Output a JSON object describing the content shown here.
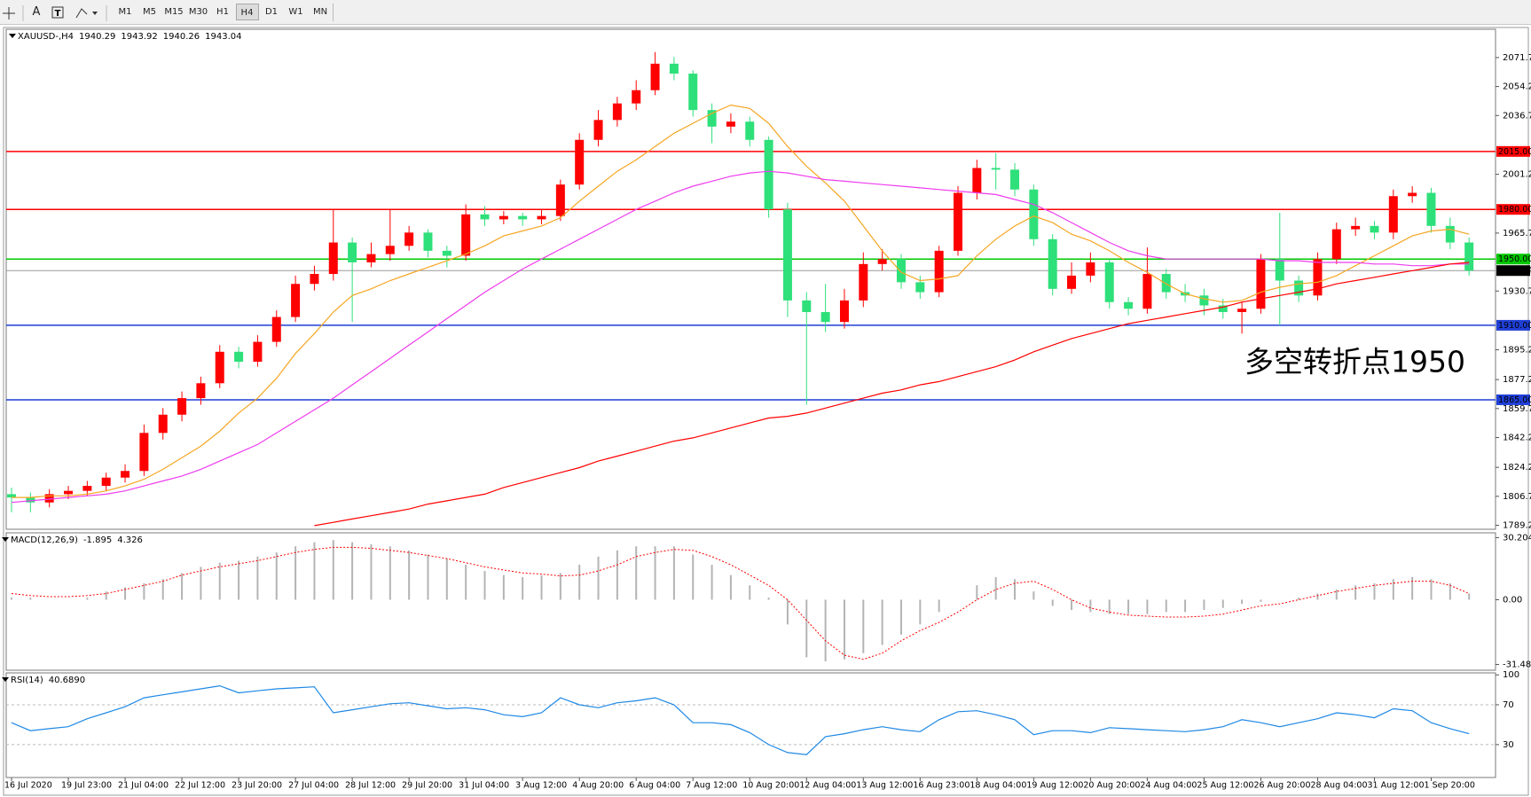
{
  "toolbar": {
    "text_tool": "A",
    "timeframes": [
      "M1",
      "M5",
      "M15",
      "M30",
      "H1",
      "H4",
      "D1",
      "W1",
      "MN"
    ]
  },
  "chart_data": [
    {
      "type": "candlestick",
      "title": "XAUUSD-,H4",
      "header_values": [
        1940.29,
        1943.92,
        1940.26,
        1943.04
      ],
      "up_color": "#ff0000",
      "down_color": "#2ee07a",
      "categories": [
        "16 Jul 2020",
        null,
        null,
        "19 Jul 23:00",
        null,
        null,
        "21 Jul 04:00",
        null,
        null,
        "22 Jul 12:00",
        null,
        null,
        "23 Jul 20:00",
        null,
        null,
        "27 Jul 04:00",
        null,
        null,
        "28 Jul 12:00",
        null,
        null,
        "29 Jul 20:00",
        null,
        null,
        "31 Jul 04:00",
        null,
        null,
        "3 Aug 12:00",
        null,
        null,
        "4 Aug 20:00",
        null,
        null,
        "6 Aug 04:00",
        null,
        null,
        "7 Aug 12:00",
        null,
        null,
        "10 Aug 20:00",
        null,
        null,
        "12 Aug 04:00",
        null,
        null,
        "13 Aug 12:00",
        null,
        null,
        "16 Aug 23:00",
        null,
        null,
        "18 Aug 04:00",
        null,
        null,
        "19 Aug 12:00",
        null,
        null,
        "20 Aug 20:00",
        null,
        null,
        "24 Aug 04:00",
        null,
        null,
        "25 Aug 12:00",
        null,
        null,
        "26 Aug 20:00",
        null,
        null,
        "28 Aug 04:00",
        null,
        null,
        "31 Aug 12:00",
        null,
        null,
        "1 Sep 20:00",
        null,
        null
      ],
      "open": [
        1808,
        1806,
        1803,
        1808,
        1810,
        1813,
        1818,
        1822,
        1845,
        1856,
        1866,
        1875,
        1894,
        1888,
        1900,
        1915,
        1935,
        1941,
        1960,
        1948,
        1953,
        1958,
        1966,
        1955,
        1952,
        1977,
        1974,
        1976,
        1974,
        1976,
        1995,
        2022,
        2034,
        2044,
        2052,
        2068,
        2062,
        2040,
        2030,
        2033,
        2022,
        1980,
        1925,
        1918,
        1912,
        1925,
        1947,
        1950,
        1936,
        1930,
        1955,
        1990,
        2005,
        2004,
        1992,
        1962,
        1932,
        1940,
        1948,
        1924,
        1920,
        1941,
        1930,
        1928,
        1922,
        1918,
        1920,
        1950,
        1937,
        1928,
        1950,
        1968,
        1970,
        1966,
        1988,
        1990,
        1970,
        1960
      ],
      "high": [
        1812,
        1809,
        1811,
        1813,
        1816,
        1821,
        1826,
        1850,
        1860,
        1870,
        1879,
        1898,
        1897,
        1904,
        1919,
        1940,
        1946,
        1980,
        1963,
        1960,
        1980,
        1970,
        1968,
        1958,
        1983,
        1982,
        1979,
        1978,
        1980,
        1998,
        2026,
        2040,
        2048,
        2058,
        2075,
        2072,
        2064,
        2044,
        2038,
        2036,
        2024,
        1984,
        1930,
        1935,
        1932,
        1954,
        1956,
        1953,
        1940,
        1958,
        1994,
        2010,
        2014,
        2008,
        1995,
        1965,
        1948,
        1954,
        1950,
        1927,
        1957,
        1944,
        1935,
        1932,
        1926,
        1924,
        1953,
        1978,
        1940,
        1954,
        1972,
        1975,
        1973,
        1992,
        1994,
        1993,
        1975,
        1963
      ],
      "low": [
        1797,
        1797,
        1800,
        1805,
        1807,
        1810,
        1815,
        1819,
        1841,
        1852,
        1862,
        1872,
        1884,
        1885,
        1897,
        1912,
        1931,
        1937,
        1912,
        1945,
        1949,
        1955,
        1951,
        1945,
        1949,
        1970,
        1971,
        1970,
        1971,
        1973,
        1992,
        2018,
        2030,
        2040,
        2049,
        2058,
        2036,
        2020,
        2026,
        2018,
        1975,
        1915,
        1862,
        1906,
        1908,
        1921,
        1943,
        1932,
        1926,
        1927,
        1952,
        1986,
        1992,
        1988,
        1958,
        1928,
        1929,
        1936,
        1920,
        1916,
        1917,
        1926,
        1924,
        1916,
        1914,
        1905,
        1917,
        1910,
        1924,
        1925,
        1947,
        1964,
        1962,
        1962,
        1984,
        1966,
        1956,
        1940
      ],
      "close": [
        1806,
        1803,
        1808,
        1810,
        1813,
        1818,
        1822,
        1845,
        1856,
        1866,
        1875,
        1894,
        1888,
        1900,
        1915,
        1935,
        1941,
        1960,
        1948,
        1953,
        1958,
        1966,
        1955,
        1952,
        1977,
        1974,
        1976,
        1974,
        1976,
        1995,
        2022,
        2034,
        2044,
        2052,
        2068,
        2062,
        2040,
        2030,
        2033,
        2022,
        1980,
        1925,
        1918,
        1912,
        1925,
        1947,
        1950,
        1936,
        1930,
        1955,
        1990,
        2005,
        2004,
        1992,
        1962,
        1932,
        1940,
        1948,
        1924,
        1920,
        1941,
        1930,
        1928,
        1922,
        1918,
        1920,
        1950,
        1937,
        1928,
        1950,
        1968,
        1970,
        1966,
        1988,
        1990,
        1970,
        1960,
        1943
      ],
      "moving_averages": [
        {
          "color": "#f5a623",
          "values": [
            1806,
            1806,
            1807,
            1807,
            1808,
            1810,
            1813,
            1817,
            1823,
            1830,
            1837,
            1846,
            1857,
            1866,
            1878,
            1893,
            1905,
            1918,
            1928,
            1932,
            1937,
            1941,
            1945,
            1949,
            1953,
            1958,
            1964,
            1967,
            1970,
            1975,
            1985,
            1994,
            2003,
            2010,
            2018,
            2026,
            2032,
            2038,
            2043,
            2041,
            2032,
            2018,
            2006,
            1996,
            1985,
            1970,
            1955,
            1942,
            1937,
            1938,
            1940,
            1952,
            1962,
            1970,
            1976,
            1972,
            1965,
            1961,
            1955,
            1948,
            1942,
            1935,
            1929,
            1926,
            1924,
            1925,
            1930,
            1933,
            1935,
            1936,
            1940,
            1946,
            1952,
            1958,
            1964,
            1967,
            1968,
            1965
          ]
        },
        {
          "color": "#ee3cee",
          "values": [
            1803,
            1804,
            1805,
            1806,
            1807,
            1808,
            1810,
            1813,
            1816,
            1819,
            1823,
            1828,
            1833,
            1838,
            1845,
            1852,
            1859,
            1866,
            1874,
            1882,
            1890,
            1898,
            1906,
            1914,
            1922,
            1930,
            1937,
            1944,
            1950,
            1956,
            1962,
            1968,
            1974,
            1980,
            1985,
            1990,
            1994,
            1997,
            2000,
            2002,
            2003,
            2002,
            2000,
            1998,
            1997,
            1996,
            1995,
            1994,
            1993,
            1992,
            1991,
            1990,
            1989,
            1986,
            1983,
            1978,
            1972,
            1966,
            1960,
            1955,
            1952,
            1950,
            1950,
            1950,
            1950,
            1950,
            1950,
            1949,
            1949,
            1948,
            1948,
            1948,
            1947,
            1947,
            1946,
            1946,
            1947,
            1947
          ]
        },
        {
          "color": "#ff0000",
          "values": [
            null,
            null,
            null,
            null,
            null,
            null,
            null,
            null,
            null,
            null,
            null,
            null,
            null,
            null,
            null,
            null,
            1789,
            1791,
            1793,
            1795,
            1797,
            1799,
            1802,
            1804,
            1806,
            1808,
            1812,
            1815,
            1818,
            1821,
            1824,
            1828,
            1831,
            1834,
            1837,
            1840,
            1842,
            1845,
            1848,
            1851,
            1854,
            1855,
            1857,
            1860,
            1863,
            1866,
            1869,
            1871,
            1874,
            1876,
            1879,
            1882,
            1885,
            1889,
            1894,
            1898,
            1902,
            1905,
            1908,
            1911,
            1913,
            1915,
            1917,
            1919,
            1921,
            1924,
            1926,
            1928,
            1930,
            1932,
            1935,
            1937,
            1939,
            1941,
            1943,
            1945,
            1947,
            1948
          ]
        }
      ],
      "levels": [
        {
          "value": 2015,
          "label": "2015.00",
          "color": "#ff0000"
        },
        {
          "value": 1980,
          "label": "1980.00",
          "color": "#ff0000"
        },
        {
          "value": 1950,
          "label": "1950.00",
          "color": "#00c800"
        },
        {
          "value": 1910,
          "label": "1910.00",
          "color": "#1f3fd6"
        },
        {
          "value": 1865,
          "label": "1865.00",
          "color": "#1f3fd6"
        }
      ],
      "last_price": {
        "value": 1943.04,
        "label": "1943.04"
      },
      "annotation": "多空转折点1950",
      "ylim": [
        1786.8,
        2088.8
      ],
      "yticks": [
        {
          "value": 2071.7,
          "label": "2071.70"
        },
        {
          "value": 2054.2,
          "label": "2054.20"
        },
        {
          "value": 2036.7,
          "label": "2036.70"
        },
        {
          "value": 2001.2,
          "label": "2001.20"
        },
        {
          "value": 1965.7,
          "label": "1965.70"
        },
        {
          "value": 1930.7,
          "label": "1930.70"
        },
        {
          "value": 1895.2,
          "label": "1895.20"
        },
        {
          "value": 1877.2,
          "label": "1877.20"
        },
        {
          "value": 1859.7,
          "label": "1859.70"
        },
        {
          "value": 1842.2,
          "label": "1842.20"
        },
        {
          "value": 1824.2,
          "label": "1824.20"
        },
        {
          "value": 1806.7,
          "label": "1806.70"
        },
        {
          "value": 1789.2,
          "label": "1789.20"
        }
      ]
    },
    {
      "type": "macd",
      "title": "MACD(12,26,9)",
      "header_values": [
        -1.895,
        4.326
      ],
      "histogram_color": "#b4b4b4",
      "signal_color": "#ff0000",
      "histogram_values": [
        1,
        1,
        0,
        0,
        1,
        4,
        6,
        8,
        10,
        13,
        16,
        18,
        19,
        21,
        23,
        26,
        28,
        29,
        28,
        27,
        26,
        24,
        22,
        20,
        17,
        14,
        12,
        11,
        12,
        13,
        17,
        21,
        24,
        26,
        26,
        26,
        22,
        17,
        12,
        7,
        1,
        -12,
        -28,
        -30,
        -29,
        -26,
        -22,
        -17,
        -12,
        -6,
        0,
        7,
        11,
        10,
        4,
        -3,
        -5,
        -6,
        -7,
        -7,
        -7,
        -6,
        -6,
        -5,
        -4,
        -2,
        -1,
        0,
        1,
        3,
        5,
        7,
        8,
        10,
        11,
        10,
        8,
        3
      ],
      "signal_values": [
        3,
        2,
        1.5,
        1.5,
        2,
        3,
        5,
        7,
        9,
        12,
        14,
        16,
        17.5,
        19,
        21,
        23,
        24.5,
        25.5,
        25.5,
        25,
        24,
        23,
        21.5,
        20,
        18,
        16,
        14.5,
        13,
        12.5,
        11.6,
        12,
        14,
        17,
        21,
        23,
        24.5,
        24,
        21,
        17,
        12,
        7,
        0,
        -10,
        -20,
        -27,
        -29,
        -26,
        -20,
        -15,
        -11,
        -6,
        0,
        5,
        8,
        9,
        5,
        0,
        -4,
        -6,
        -7.5,
        -8,
        -8.4,
        -8.4,
        -8,
        -7,
        -5,
        -3,
        -2,
        0,
        2,
        4,
        5.5,
        7,
        8,
        9,
        9,
        7,
        3
      ],
      "ylim": [
        -34.3,
        32.56
      ],
      "yticks": [
        30.204,
        {
          "value": 0,
          "label": "0.00"
        },
        -31.482
      ]
    },
    {
      "type": "rsi",
      "title": "RSI(14)",
      "header_values": [
        {
          "value": 40.689,
          "label": "40.6890"
        }
      ],
      "color": "#1e88e5",
      "values": [
        52,
        44,
        46,
        48,
        56,
        62,
        68,
        77,
        80,
        83,
        86,
        89,
        82,
        84,
        86,
        87,
        88,
        62,
        65,
        68,
        71,
        72,
        69,
        66,
        67,
        65,
        60,
        58,
        62,
        77,
        70,
        67,
        72,
        74,
        77,
        70,
        52,
        52,
        50,
        42,
        30,
        22,
        20,
        38,
        41,
        45,
        48,
        45,
        43,
        55,
        63,
        64,
        60,
        55,
        40,
        44,
        44,
        42,
        47,
        46,
        45,
        44,
        43,
        45,
        48,
        55,
        52,
        48,
        52,
        56,
        62,
        60,
        57,
        66,
        64,
        52,
        46,
        41
      ],
      "levels": [
        70,
        30
      ],
      "ylim": [
        -3,
        102
      ],
      "yticks": [
        100,
        70,
        30
      ]
    }
  ]
}
